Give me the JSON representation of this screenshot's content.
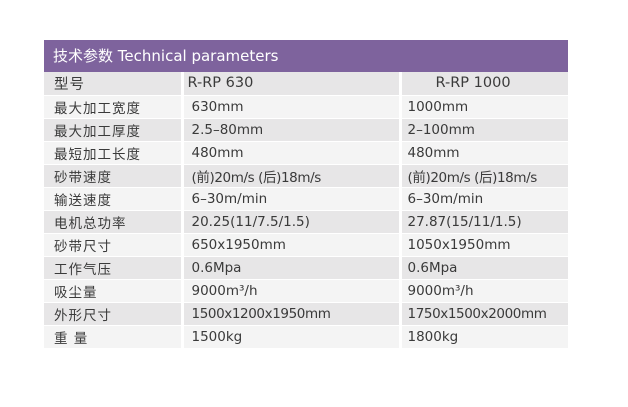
{
  "header": {
    "title_cn": "技术参数",
    "title_en": "Technical parameters"
  },
  "table": {
    "rows": [
      {
        "label": "型号",
        "v1": "R-RP 630",
        "v2": "R-RP 1000"
      },
      {
        "label": "最大加工宽度",
        "v1": "630mm",
        "v2": "1000mm"
      },
      {
        "label": "最大加工厚度",
        "v1": "2.5–80mm",
        "v2": "2–100mm"
      },
      {
        "label": "最短加工长度",
        "v1": "480mm",
        "v2": "480mm"
      },
      {
        "label": "砂带速度",
        "v1": "(前)20m/s (后)18m/s",
        "v2": "(前)20m/s (后)18m/s"
      },
      {
        "label": "输送速度",
        "v1": "6–30m/min",
        "v2": "6–30m/min"
      },
      {
        "label": "电机总功率",
        "v1": "20.25(11/7.5/1.5)",
        "v2": "27.87(15/11/1.5)"
      },
      {
        "label": "砂带尺寸",
        "v1": "650x1950mm",
        "v2": "1050x1950mm"
      },
      {
        "label": "工作气压",
        "v1": "0.6Mpa",
        "v2": "0.6Mpa"
      },
      {
        "label": "吸尘量",
        "v1": "9000m³/h",
        "v2": "9000m³/h"
      },
      {
        "label": "外形尺寸",
        "v1": "1500x1200x1950mm",
        "v2": "1750x1500x2000mm"
      },
      {
        "label": "重 量",
        "v1": "1500kg",
        "v2": "1800kg"
      }
    ]
  }
}
